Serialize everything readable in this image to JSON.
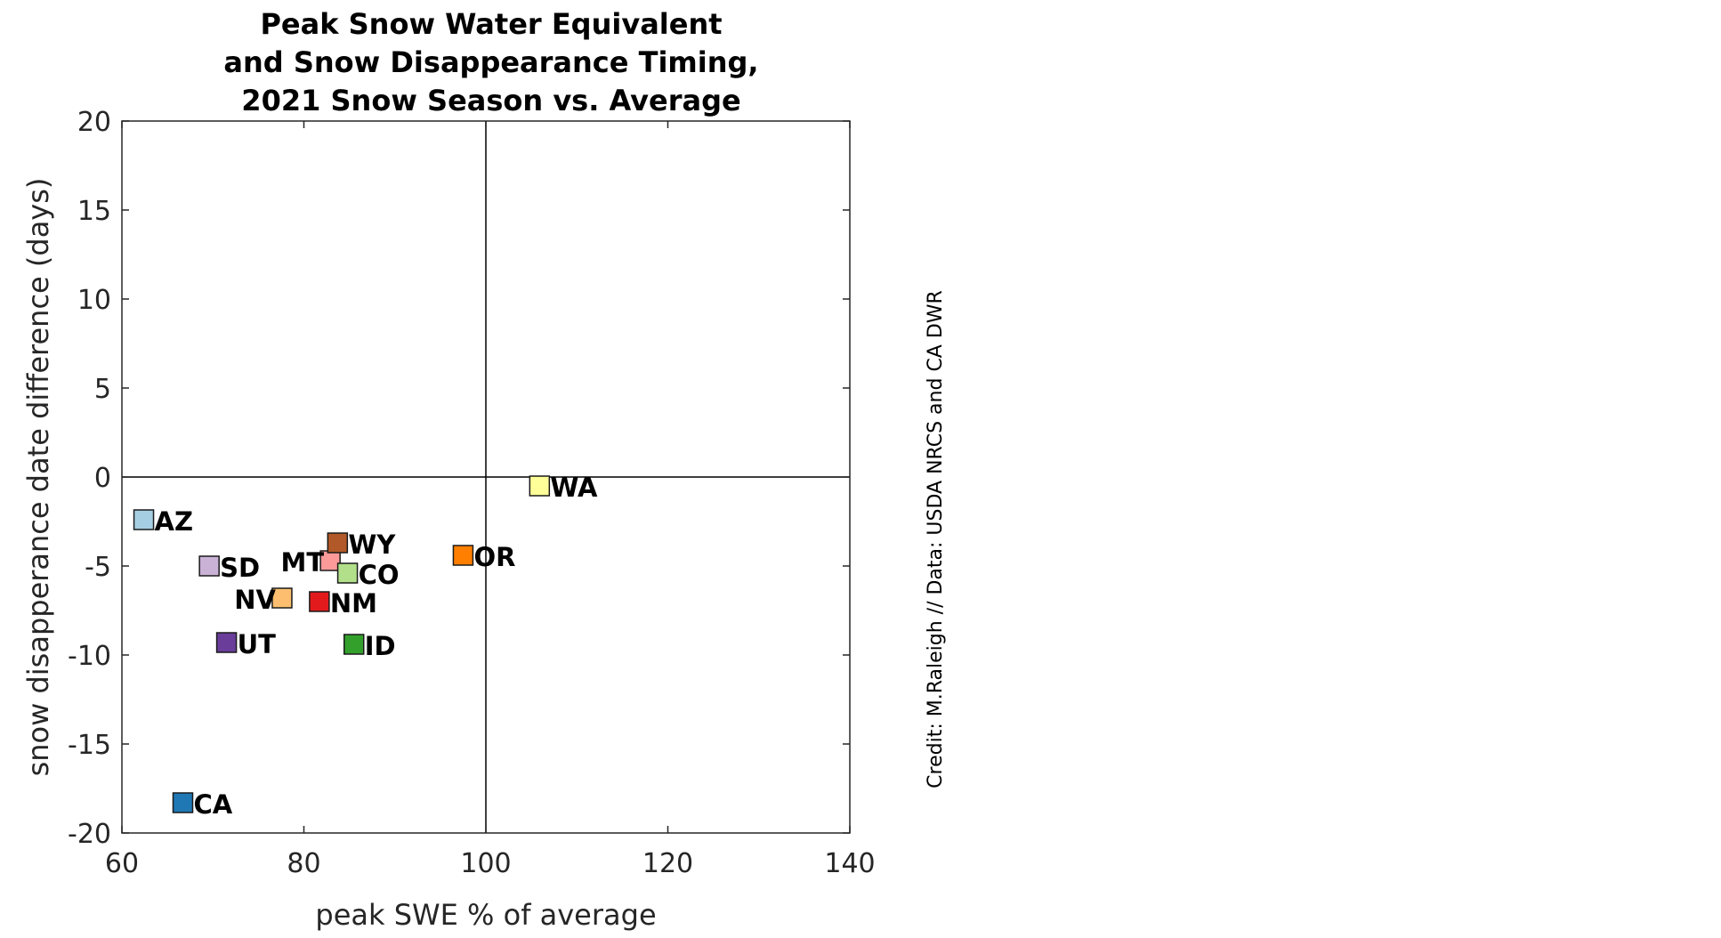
{
  "chart_data": {
    "type": "scatter",
    "title": [
      "Peak Snow Water Equivalent",
      "and Snow Disappearance Timing,",
      "2021 Snow Season vs. Average"
    ],
    "xlabel": "peak SWE % of average",
    "ylabel": "snow disapperance date difference (days)",
    "xlim": [
      60,
      140
    ],
    "ylim": [
      -20,
      20
    ],
    "xticks": [
      60,
      80,
      100,
      120,
      140
    ],
    "yticks": [
      -20,
      -15,
      -10,
      -5,
      0,
      5,
      10,
      15,
      20
    ],
    "reference_lines": {
      "x": 100,
      "y": 0
    },
    "grid": false,
    "marker": "square",
    "points": [
      {
        "label": "AZ",
        "x": 62.4,
        "y": -2.4,
        "color": "#a6cee3",
        "label_side": "right"
      },
      {
        "label": "SD",
        "x": 69.6,
        "y": -5.0,
        "color": "#cab2d6",
        "label_side": "right"
      },
      {
        "label": "NV",
        "x": 77.6,
        "y": -6.8,
        "color": "#fdbf6f",
        "label_side": "left"
      },
      {
        "label": "UT",
        "x": 71.5,
        "y": -9.3,
        "color": "#6a3d9a",
        "label_side": "right"
      },
      {
        "label": "CA",
        "x": 66.7,
        "y": -18.3,
        "color": "#1f78b4",
        "label_side": "right"
      },
      {
        "label": "MT",
        "x": 82.9,
        "y": -4.7,
        "color": "#fb9a99",
        "label_side": "left"
      },
      {
        "label": "WY",
        "x": 83.7,
        "y": -3.7,
        "color": "#b15928",
        "label_side": "right"
      },
      {
        "label": "CO",
        "x": 84.8,
        "y": -5.4,
        "color": "#b2df8a",
        "label_side": "right"
      },
      {
        "label": "NM",
        "x": 81.7,
        "y": -7.0,
        "color": "#e31a1c",
        "label_side": "right"
      },
      {
        "label": "ID",
        "x": 85.5,
        "y": -9.4,
        "color": "#33a02c",
        "label_side": "right"
      },
      {
        "label": "OR",
        "x": 97.5,
        "y": -4.4,
        "color": "#ff7f00",
        "label_side": "right"
      },
      {
        "label": "WA",
        "x": 105.9,
        "y": -0.5,
        "color": "#ffff99",
        "label_side": "right"
      }
    ],
    "annotation": "Credit: M.Raleigh // Data: USDA NRCS and CA DWR"
  }
}
